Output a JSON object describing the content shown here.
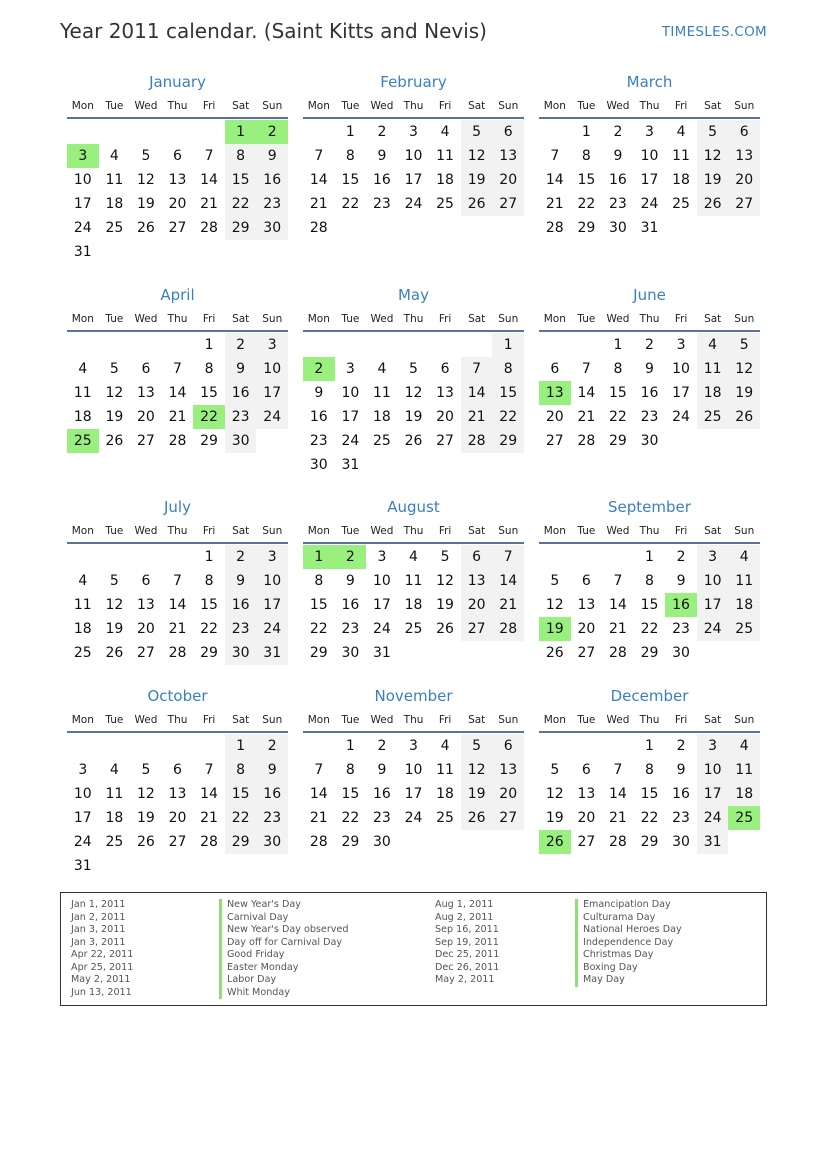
{
  "header": {
    "title": "Year 2011 calendar. (Saint Kitts and Nevis)",
    "brand": "TIMESLES.COM"
  },
  "year": 2011,
  "colors": {
    "accent": "#3a7fc4",
    "holiday": "#99f07f",
    "weekend": "#f2f2f2"
  },
  "weekdays": [
    "Mon",
    "Tue",
    "Wed",
    "Thu",
    "Fri",
    "Sat",
    "Sun"
  ],
  "months": [
    "January",
    "February",
    "March",
    "April",
    "May",
    "June",
    "July",
    "August",
    "September",
    "October",
    "November",
    "December"
  ],
  "highlighted_days": {
    "1": [
      1,
      2,
      3
    ],
    "4": [
      22,
      25
    ],
    "5": [
      2
    ],
    "6": [
      13
    ],
    "8": [
      1,
      2
    ],
    "9": [
      16,
      19
    ],
    "12": [
      25,
      26
    ]
  },
  "holidays_left": [
    {
      "date": "Jan 1, 2011",
      "name": "New Year's Day"
    },
    {
      "date": "Jan 2, 2011",
      "name": "Carnival Day"
    },
    {
      "date": "Jan 3, 2011",
      "name": "New Year's Day observed"
    },
    {
      "date": "Jan 3, 2011",
      "name": "Day off for Carnival Day"
    },
    {
      "date": "Apr 22, 2011",
      "name": "Good Friday"
    },
    {
      "date": "Apr 25, 2011",
      "name": "Easter Monday"
    },
    {
      "date": "May 2, 2011",
      "name": "Labor Day"
    },
    {
      "date": "Jun 13, 2011",
      "name": "Whit Monday"
    }
  ],
  "holidays_right": [
    {
      "date": "Aug 1, 2011",
      "name": "Emancipation Day"
    },
    {
      "date": "Aug 2, 2011",
      "name": "Culturama Day"
    },
    {
      "date": "Sep 16, 2011",
      "name": "National Heroes Day"
    },
    {
      "date": "Sep 19, 2011",
      "name": "Independence Day"
    },
    {
      "date": "Dec 25, 2011",
      "name": "Christmas Day"
    },
    {
      "date": "Dec 26, 2011",
      "name": "Boxing Day"
    },
    {
      "date": "May 2, 2011",
      "name": "May Day"
    }
  ]
}
